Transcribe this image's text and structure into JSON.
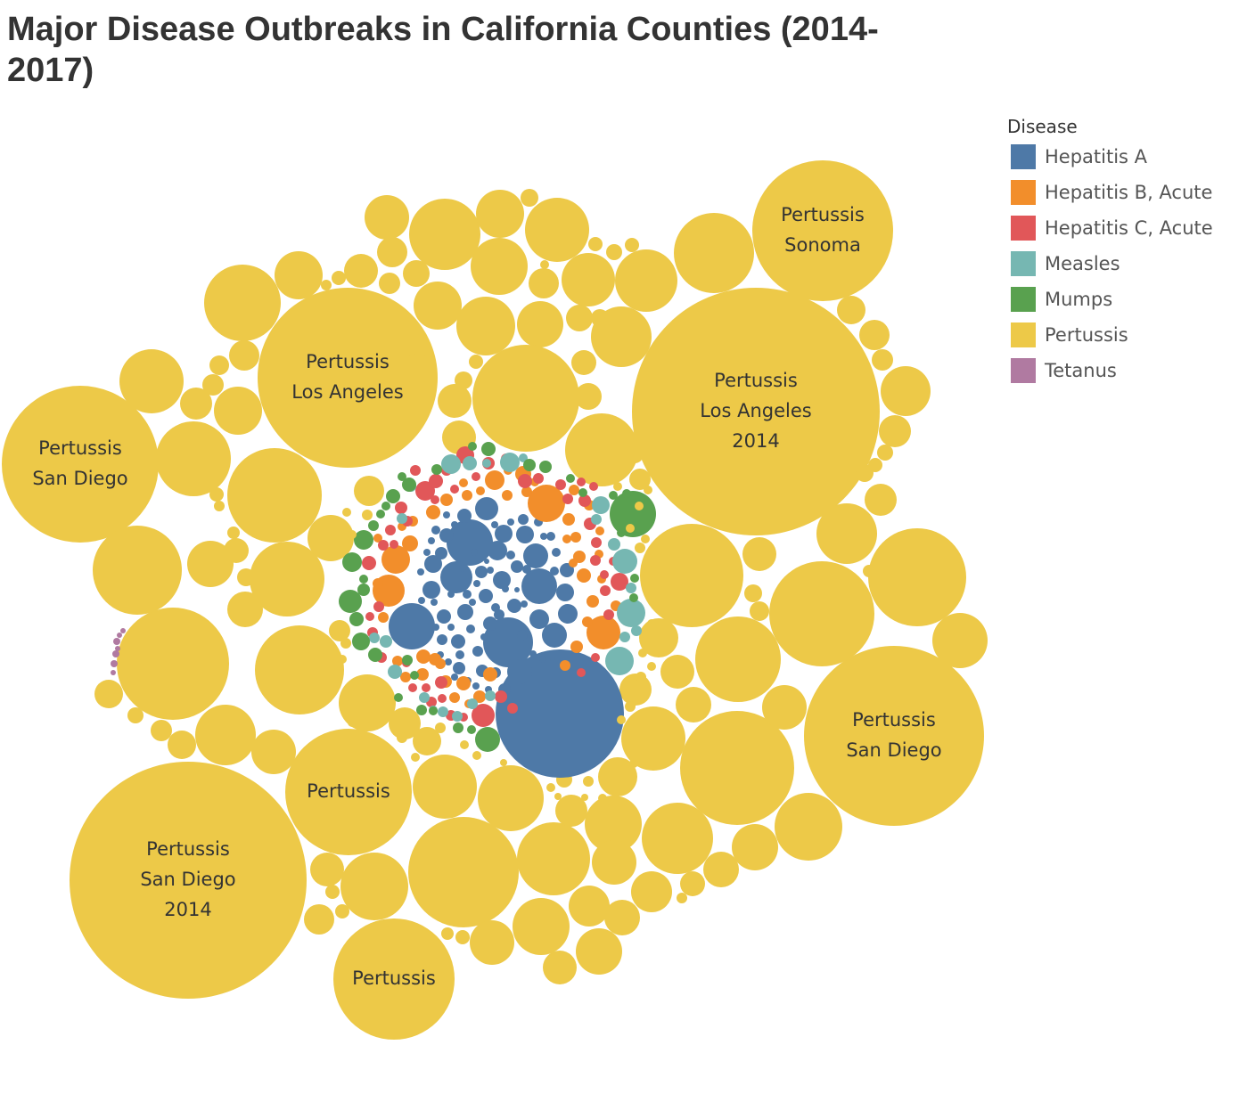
{
  "title": "Major Disease Outbreaks in California Counties (2014-2017)",
  "legend": {
    "title": "Disease",
    "items": [
      {
        "label": "Hepatitis A",
        "color": "#4e79a7"
      },
      {
        "label": "Hepatitis B, Acute",
        "color": "#f28e2b"
      },
      {
        "label": "Hepatitis C, Acute",
        "color": "#e15759"
      },
      {
        "label": "Measles",
        "color": "#76b7b2"
      },
      {
        "label": "Mumps",
        "color": "#59a14f"
      },
      {
        "label": "Pertussis",
        "color": "#edc948"
      },
      {
        "label": "Tetanus",
        "color": "#b07aa1"
      }
    ]
  },
  "chart_data": {
    "type": "packed-bubble",
    "color_by": "Disease",
    "size_by": "Cases",
    "labeled_bubbles": [
      {
        "disease": "Pertussis",
        "county": "Los Angeles",
        "year": "2014"
      },
      {
        "disease": "Pertussis",
        "county": "San Diego",
        "year": "2014"
      },
      {
        "disease": "Pertussis",
        "county": "San Diego",
        "year": ""
      },
      {
        "disease": "Pertussis",
        "county": "Los Angeles",
        "year": ""
      },
      {
        "disease": "Pertussis",
        "county": "San Diego",
        "year": ""
      },
      {
        "disease": "Pertussis",
        "county": "Sonoma",
        "year": ""
      },
      {
        "disease": "Pertussis",
        "county": "",
        "year": ""
      },
      {
        "disease": "Pertussis",
        "county": "",
        "year": ""
      }
    ]
  }
}
